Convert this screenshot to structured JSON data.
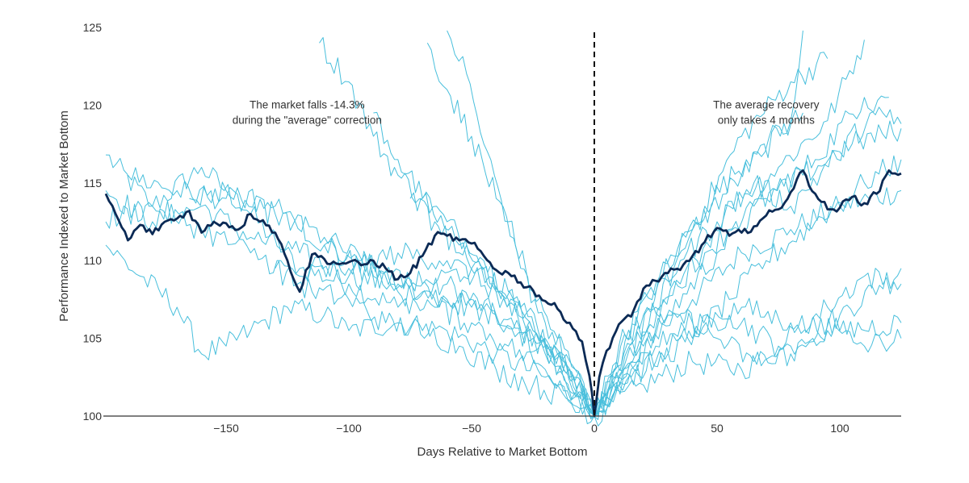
{
  "chart_data": {
    "type": "line",
    "title": "",
    "xlabel": "Days Relative to Market Bottom",
    "ylabel": "Performance Indexed to Market Bottom",
    "xlim": [
      -200,
      125
    ],
    "ylim": [
      100,
      125
    ],
    "x_ticks": [
      -150,
      -100,
      -50,
      0,
      50,
      100
    ],
    "x_tick_labels": [
      "−150",
      "−100",
      "−50",
      "0",
      "50",
      "100"
    ],
    "y_ticks": [
      100,
      105,
      110,
      115,
      120,
      125
    ],
    "y_tick_labels": [
      "100",
      "105",
      "110",
      "115",
      "120",
      "125"
    ],
    "grid": false,
    "legend": "none",
    "colors": {
      "average": "#0b2a55",
      "individual": "#49bfdc",
      "axis": "#333333"
    },
    "market_bottom_x": 0,
    "annotations": [
      {
        "lines": [
          "The market falls -14.3%",
          "during the \"average\" correction"
        ],
        "x": -117,
        "y": 119.8
      },
      {
        "lines": [
          "The average recovery",
          "only takes 4 months"
        ],
        "x": 70,
        "y": 119.8
      }
    ],
    "series": [
      {
        "role": "average",
        "points": [
          [
            -199,
            114.3
          ],
          [
            -195,
            113.0
          ],
          [
            -190,
            111.3
          ],
          [
            -185,
            112.3
          ],
          [
            -180,
            111.7
          ],
          [
            -175,
            112.5
          ],
          [
            -170,
            112.7
          ],
          [
            -165,
            113.2
          ],
          [
            -160,
            111.8
          ],
          [
            -155,
            112.5
          ],
          [
            -150,
            112.4
          ],
          [
            -145,
            112.0
          ],
          [
            -140,
            113.0
          ],
          [
            -135,
            112.6
          ],
          [
            -130,
            111.8
          ],
          [
            -125,
            110.0
          ],
          [
            -120,
            108.0
          ],
          [
            -115,
            110.4
          ],
          [
            -110,
            110.1
          ],
          [
            -105,
            109.8
          ],
          [
            -100,
            109.9
          ],
          [
            -95,
            109.7
          ],
          [
            -90,
            110.0
          ],
          [
            -85,
            109.5
          ],
          [
            -80,
            108.8
          ],
          [
            -75,
            109.2
          ],
          [
            -70,
            110.3
          ],
          [
            -65,
            111.6
          ],
          [
            -60,
            111.6
          ],
          [
            -55,
            111.3
          ],
          [
            -50,
            111.1
          ],
          [
            -45,
            110.3
          ],
          [
            -40,
            109.4
          ],
          [
            -35,
            109.2
          ],
          [
            -30,
            108.6
          ],
          [
            -25,
            108.1
          ],
          [
            -20,
            107.4
          ],
          [
            -15,
            106.9
          ],
          [
            -10,
            106.0
          ],
          [
            -5,
            104.8
          ],
          [
            -2,
            102.6
          ],
          [
            0,
            100.0
          ],
          [
            2,
            102.5
          ],
          [
            5,
            104.2
          ],
          [
            10,
            105.9
          ],
          [
            15,
            106.4
          ],
          [
            20,
            108.2
          ],
          [
            25,
            108.7
          ],
          [
            30,
            109.2
          ],
          [
            35,
            109.4
          ],
          [
            40,
            110.3
          ],
          [
            45,
            111.2
          ],
          [
            50,
            112.1
          ],
          [
            55,
            111.6
          ],
          [
            60,
            111.8
          ],
          [
            65,
            112.2
          ],
          [
            70,
            112.9
          ],
          [
            75,
            113.3
          ],
          [
            80,
            114.4
          ],
          [
            85,
            115.8
          ],
          [
            90,
            114.3
          ],
          [
            95,
            113.3
          ],
          [
            100,
            113.4
          ],
          [
            105,
            114.1
          ],
          [
            110,
            113.7
          ],
          [
            115,
            114.3
          ],
          [
            120,
            115.8
          ],
          [
            125,
            115.6
          ]
        ]
      },
      {
        "role": "individual",
        "points": [
          [
            -199,
            116.8
          ],
          [
            -180,
            113.5
          ],
          [
            -160,
            116.0
          ],
          [
            -140,
            113.0
          ],
          [
            -120,
            109.5
          ],
          [
            -100,
            108.5
          ],
          [
            -80,
            107.0
          ],
          [
            -60,
            108.5
          ],
          [
            -40,
            106.5
          ],
          [
            -20,
            104.0
          ],
          [
            0,
            100.0
          ],
          [
            20,
            104.5
          ],
          [
            40,
            107.5
          ],
          [
            60,
            110.5
          ],
          [
            80,
            112.0
          ],
          [
            100,
            113.5
          ],
          [
            125,
            114.5
          ]
        ]
      },
      {
        "role": "individual",
        "points": [
          [
            -199,
            111.0
          ],
          [
            -185,
            109.0
          ],
          [
            -170,
            107.0
          ],
          [
            -160,
            104.0
          ],
          [
            -150,
            104.5
          ],
          [
            -140,
            105.5
          ],
          [
            -125,
            107.0
          ],
          [
            -110,
            106.5
          ],
          [
            -100,
            105.5
          ],
          [
            -80,
            106.0
          ],
          [
            -60,
            105.5
          ],
          [
            -40,
            104.0
          ],
          [
            -20,
            102.5
          ],
          [
            0,
            100.0
          ],
          [
            20,
            102.0
          ],
          [
            40,
            103.5
          ],
          [
            60,
            103.0
          ],
          [
            80,
            104.5
          ],
          [
            100,
            106.5
          ],
          [
            125,
            109.5
          ]
        ]
      },
      {
        "role": "individual",
        "points": [
          [
            -199,
            114.5
          ],
          [
            -180,
            112.5
          ],
          [
            -160,
            113.5
          ],
          [
            -140,
            111.5
          ],
          [
            -120,
            110.5
          ],
          [
            -100,
            109.0
          ],
          [
            -80,
            108.5
          ],
          [
            -60,
            107.5
          ],
          [
            -40,
            106.5
          ],
          [
            -20,
            104.5
          ],
          [
            0,
            100.0
          ],
          [
            20,
            107.5
          ],
          [
            40,
            112.0
          ],
          [
            60,
            115.5
          ],
          [
            80,
            119.0
          ],
          [
            85,
            124.8
          ]
        ]
      },
      {
        "role": "individual",
        "points": [
          [
            -190,
            115.5
          ],
          [
            -170,
            114.5
          ],
          [
            -150,
            114.0
          ],
          [
            -130,
            113.0
          ],
          [
            -110,
            111.5
          ],
          [
            -90,
            109.5
          ],
          [
            -70,
            108.0
          ],
          [
            -50,
            107.0
          ],
          [
            -30,
            105.5
          ],
          [
            -10,
            103.0
          ],
          [
            0,
            100.0
          ],
          [
            15,
            103.5
          ],
          [
            35,
            108.5
          ],
          [
            55,
            113.5
          ],
          [
            75,
            116.0
          ],
          [
            95,
            119.0
          ],
          [
            110,
            124.2
          ]
        ]
      },
      {
        "role": "individual",
        "points": [
          [
            -112,
            124.0
          ],
          [
            -100,
            121.5
          ],
          [
            -90,
            118.0
          ],
          [
            -80,
            115.5
          ],
          [
            -70,
            114.0
          ],
          [
            -60,
            112.5
          ],
          [
            -45,
            110.0
          ],
          [
            -30,
            107.0
          ],
          [
            -15,
            104.0
          ],
          [
            0,
            100.0
          ],
          [
            15,
            103.0
          ],
          [
            30,
            106.5
          ],
          [
            50,
            110.5
          ],
          [
            70,
            114.0
          ],
          [
            90,
            116.5
          ],
          [
            110,
            120.5
          ],
          [
            125,
            118.8
          ]
        ]
      },
      {
        "role": "individual",
        "points": [
          [
            -68,
            124.0
          ],
          [
            -60,
            121.0
          ],
          [
            -50,
            118.0
          ],
          [
            -40,
            114.0
          ],
          [
            -30,
            109.5
          ],
          [
            -20,
            106.0
          ],
          [
            -10,
            103.5
          ],
          [
            0,
            100.0
          ],
          [
            10,
            103.0
          ],
          [
            25,
            107.0
          ],
          [
            40,
            112.0
          ],
          [
            60,
            118.0
          ],
          [
            80,
            121.5
          ],
          [
            95,
            123.0
          ]
        ]
      },
      {
        "role": "individual",
        "points": [
          [
            -60,
            124.8
          ],
          [
            -52,
            122.0
          ],
          [
            -45,
            117.5
          ],
          [
            -35,
            112.5
          ],
          [
            -25,
            108.0
          ],
          [
            -15,
            105.0
          ],
          [
            -5,
            102.0
          ],
          [
            0,
            100.0
          ],
          [
            10,
            104.5
          ],
          [
            25,
            108.5
          ],
          [
            45,
            113.5
          ],
          [
            65,
            117.0
          ],
          [
            85,
            119.5
          ]
        ]
      },
      {
        "role": "individual",
        "points": [
          [
            -90,
            119.5
          ],
          [
            -80,
            116.5
          ],
          [
            -70,
            114.0
          ],
          [
            -55,
            111.0
          ],
          [
            -40,
            108.0
          ],
          [
            -25,
            105.0
          ],
          [
            -10,
            102.5
          ],
          [
            0,
            100.0
          ],
          [
            15,
            102.5
          ],
          [
            35,
            105.0
          ],
          [
            55,
            106.5
          ],
          [
            75,
            104.5
          ],
          [
            95,
            107.0
          ],
          [
            110,
            109.0
          ],
          [
            125,
            108.5
          ]
        ]
      },
      {
        "role": "individual",
        "points": [
          [
            -130,
            109.5
          ],
          [
            -115,
            108.0
          ],
          [
            -100,
            107.5
          ],
          [
            -85,
            106.0
          ],
          [
            -70,
            105.5
          ],
          [
            -55,
            104.5
          ],
          [
            -40,
            103.0
          ],
          [
            -25,
            102.0
          ],
          [
            -10,
            101.0
          ],
          [
            0,
            100.0
          ],
          [
            10,
            102.0
          ],
          [
            25,
            103.5
          ],
          [
            40,
            105.0
          ],
          [
            55,
            107.5
          ],
          [
            70,
            110.0
          ],
          [
            90,
            112.5
          ],
          [
            110,
            115.0
          ],
          [
            125,
            116.5
          ]
        ]
      },
      {
        "role": "individual",
        "points": [
          [
            -199,
            112.5
          ],
          [
            -180,
            113.5
          ],
          [
            -160,
            112.0
          ],
          [
            -140,
            110.5
          ],
          [
            -120,
            109.0
          ],
          [
            -100,
            109.5
          ],
          [
            -80,
            110.5
          ],
          [
            -60,
            110.0
          ],
          [
            -40,
            108.0
          ],
          [
            -25,
            105.5
          ],
          [
            -10,
            103.0
          ],
          [
            0,
            100.0
          ],
          [
            10,
            102.5
          ],
          [
            25,
            104.5
          ],
          [
            40,
            106.0
          ],
          [
            60,
            107.0
          ],
          [
            80,
            106.0
          ],
          [
            100,
            105.5
          ],
          [
            125,
            106.0
          ]
        ]
      },
      {
        "role": "individual",
        "points": [
          [
            -165,
            114.0
          ],
          [
            -150,
            114.5
          ],
          [
            -130,
            113.5
          ],
          [
            -110,
            111.0
          ],
          [
            -90,
            109.0
          ],
          [
            -70,
            108.5
          ],
          [
            -50,
            109.5
          ],
          [
            -35,
            108.0
          ],
          [
            -20,
            105.0
          ],
          [
            -8,
            102.5
          ],
          [
            0,
            100.0
          ],
          [
            12,
            104.0
          ],
          [
            28,
            107.5
          ],
          [
            45,
            110.5
          ],
          [
            65,
            113.5
          ],
          [
            85,
            115.5
          ],
          [
            105,
            117.5
          ],
          [
            125,
            118.5
          ]
        ]
      },
      {
        "role": "individual",
        "points": [
          [
            -110,
            111.0
          ],
          [
            -95,
            110.0
          ],
          [
            -80,
            108.0
          ],
          [
            -65,
            107.0
          ],
          [
            -50,
            106.0
          ],
          [
            -35,
            104.5
          ],
          [
            -20,
            103.0
          ],
          [
            -8,
            101.5
          ],
          [
            0,
            100.0
          ],
          [
            8,
            102.5
          ],
          [
            20,
            105.0
          ],
          [
            35,
            106.5
          ],
          [
            50,
            105.0
          ],
          [
            65,
            103.5
          ],
          [
            80,
            104.0
          ],
          [
            95,
            105.5
          ],
          [
            110,
            104.5
          ],
          [
            125,
            105.0
          ]
        ]
      },
      {
        "role": "individual",
        "points": [
          [
            -75,
            114.0
          ],
          [
            -65,
            112.5
          ],
          [
            -55,
            110.5
          ],
          [
            -45,
            109.5
          ],
          [
            -35,
            107.5
          ],
          [
            -25,
            105.5
          ],
          [
            -15,
            104.0
          ],
          [
            -5,
            102.0
          ],
          [
            0,
            100.0
          ],
          [
            8,
            103.0
          ],
          [
            20,
            106.5
          ],
          [
            35,
            110.0
          ],
          [
            50,
            112.5
          ],
          [
            65,
            115.0
          ],
          [
            80,
            113.5
          ],
          [
            100,
            117.0
          ],
          [
            120,
            120.5
          ]
        ]
      }
    ]
  }
}
